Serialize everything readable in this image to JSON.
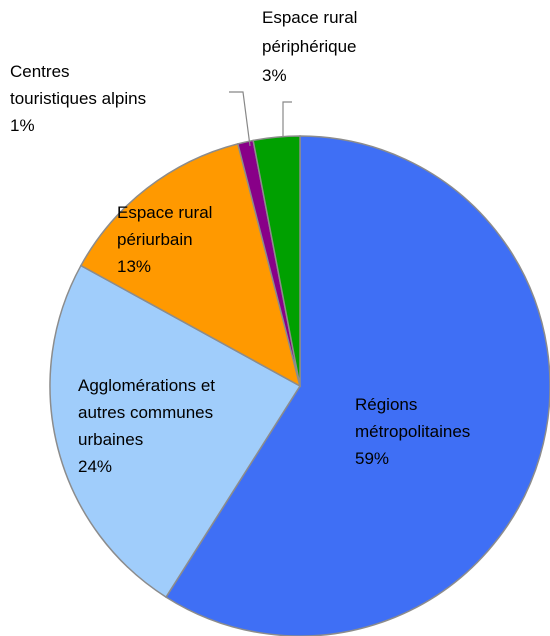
{
  "chart_data": {
    "type": "pie",
    "categories": [
      "Régions métropolitaines",
      "Agglomérations et autres communes urbaines",
      "Espace rural périurbain",
      "Centres touristiques alpins",
      "Espace rural périphérique"
    ],
    "values": [
      59,
      24,
      13,
      1,
      3
    ],
    "value_labels": [
      "59%",
      "24%",
      "13%",
      "1%",
      "3%"
    ],
    "colors": [
      "#3f6ff5",
      "#a0cdfb",
      "#ff9900",
      "#880088",
      "#00a000"
    ]
  }
}
